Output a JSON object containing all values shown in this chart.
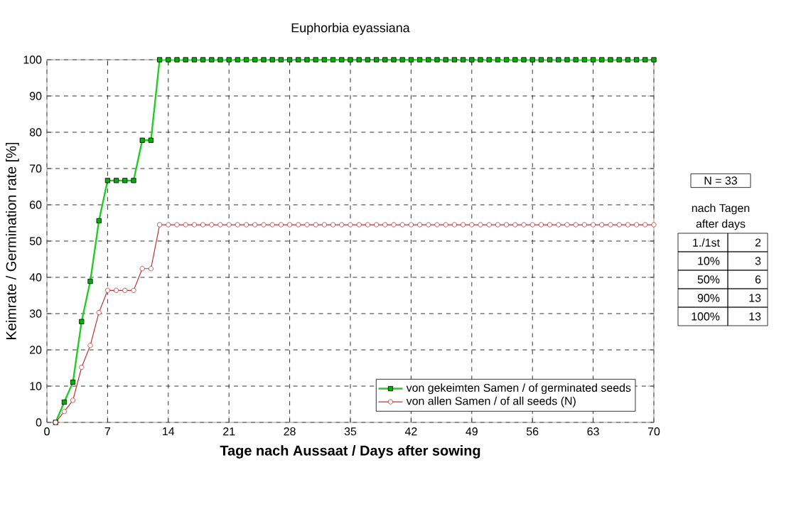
{
  "chart_data": {
    "type": "line",
    "title": "Euphorbia eyassiana",
    "xlabel": "Tage nach Aussaat / Days after sowing",
    "ylabel": "Keimrate / Germination rate [%]",
    "x": [
      1,
      2,
      3,
      4,
      5,
      6,
      7,
      8,
      9,
      10,
      11,
      12,
      13,
      14,
      15,
      16,
      17,
      18,
      19,
      20,
      21,
      22,
      23,
      24,
      25,
      26,
      27,
      28,
      29,
      30,
      31,
      32,
      33,
      34,
      35,
      36,
      37,
      38,
      39,
      40,
      41,
      42,
      43,
      44,
      45,
      46,
      47,
      48,
      49,
      50,
      51,
      52,
      53,
      54,
      55,
      56,
      57,
      58,
      59,
      60,
      61,
      62,
      63,
      64,
      65,
      66,
      67,
      68,
      69,
      70
    ],
    "series": [
      {
        "name": "von gekeimten Samen / of germinated seeds",
        "color": "#22cc22",
        "marker": "square",
        "values": [
          0,
          5.6,
          11.1,
          27.8,
          38.9,
          55.6,
          66.7,
          66.7,
          66.7,
          66.7,
          77.8,
          77.8,
          100,
          100,
          100,
          100,
          100,
          100,
          100,
          100,
          100,
          100,
          100,
          100,
          100,
          100,
          100,
          100,
          100,
          100,
          100,
          100,
          100,
          100,
          100,
          100,
          100,
          100,
          100,
          100,
          100,
          100,
          100,
          100,
          100,
          100,
          100,
          100,
          100,
          100,
          100,
          100,
          100,
          100,
          100,
          100,
          100,
          100,
          100,
          100,
          100,
          100,
          100,
          100,
          100,
          100,
          100,
          100,
          100,
          100
        ]
      },
      {
        "name": "von allen Samen / of all seeds (N)",
        "color": "#c03030",
        "marker": "circle",
        "values": [
          0,
          3.0,
          6.1,
          15.2,
          21.2,
          30.3,
          36.4,
          36.4,
          36.4,
          36.4,
          42.4,
          42.4,
          54.5,
          54.5,
          54.5,
          54.5,
          54.5,
          54.5,
          54.5,
          54.5,
          54.5,
          54.5,
          54.5,
          54.5,
          54.5,
          54.5,
          54.5,
          54.5,
          54.5,
          54.5,
          54.5,
          54.5,
          54.5,
          54.5,
          54.5,
          54.5,
          54.5,
          54.5,
          54.5,
          54.5,
          54.5,
          54.5,
          54.5,
          54.5,
          54.5,
          54.5,
          54.5,
          54.5,
          54.5,
          54.5,
          54.5,
          54.5,
          54.5,
          54.5,
          54.5,
          54.5,
          54.5,
          54.5,
          54.5,
          54.5,
          54.5,
          54.5,
          54.5,
          54.5,
          54.5,
          54.5,
          54.5,
          54.5,
          54.5,
          54.5
        ]
      }
    ],
    "xlim": [
      0,
      70
    ],
    "xticks": [
      0,
      7,
      14,
      21,
      28,
      35,
      42,
      49,
      56,
      63,
      70
    ],
    "ylim": [
      0,
      100
    ],
    "yticks": [
      0,
      10,
      20,
      30,
      40,
      50,
      60,
      70,
      80,
      90,
      100
    ],
    "grid": true,
    "legend": "bottom right",
    "line_style": "solid",
    "annotations": [
      "N = 33",
      "nach Tagen",
      "after days",
      "1./1st",
      "2",
      "10%",
      "3",
      "50%",
      "6",
      "90%",
      "13",
      "100%",
      "13"
    ]
  }
}
